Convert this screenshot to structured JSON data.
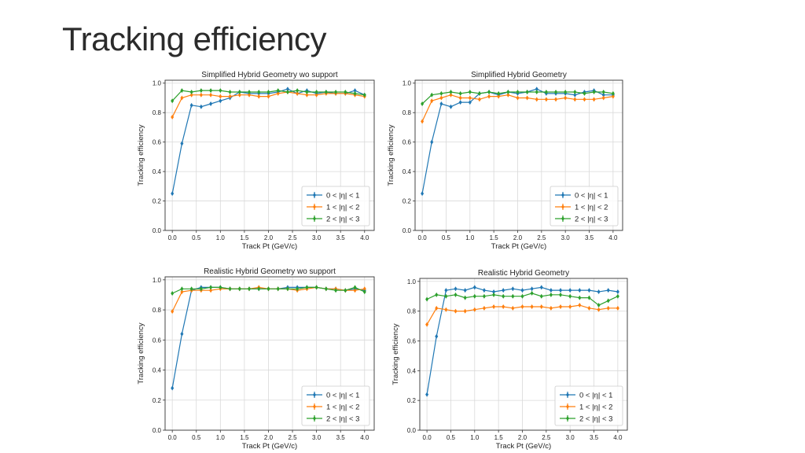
{
  "slide": {
    "title": "Tracking efficiency"
  },
  "chart_data": [
    {
      "type": "line",
      "title": "Simplified Hybrid Geometry wo support",
      "xlabel": "Track Pt (GeV/c)",
      "ylabel": "Tracking efficiency",
      "xlim": [
        -0.15,
        4.2
      ],
      "ylim": [
        0.0,
        1.02
      ],
      "xticks": [
        "0.0",
        "0.5",
        "1.0",
        "1.5",
        "2.0",
        "2.5",
        "3.0",
        "3.5",
        "4.0"
      ],
      "yticks": [
        "0.0",
        "0.2",
        "0.4",
        "0.6",
        "0.8",
        "1.0"
      ],
      "grid": true,
      "legend_position": "lower-right",
      "x": [
        0.0,
        0.2,
        0.4,
        0.6,
        0.8,
        1.0,
        1.2,
        1.4,
        1.6,
        1.8,
        2.0,
        2.2,
        2.4,
        2.6,
        2.8,
        3.0,
        3.2,
        3.4,
        3.6,
        3.8,
        4.0
      ],
      "series": [
        {
          "name": "0 < |η| < 1",
          "color": "#1f77b4",
          "values": [
            0.25,
            0.59,
            0.85,
            0.84,
            0.86,
            0.88,
            0.9,
            0.94,
            0.93,
            0.93,
            0.93,
            0.94,
            0.96,
            0.93,
            0.95,
            0.93,
            0.94,
            0.93,
            0.93,
            0.95,
            0.92
          ]
        },
        {
          "name": "1 < |η| < 2",
          "color": "#ff7f0e",
          "values": [
            0.77,
            0.9,
            0.92,
            0.92,
            0.92,
            0.91,
            0.91,
            0.92,
            0.92,
            0.91,
            0.91,
            0.93,
            0.94,
            0.93,
            0.92,
            0.92,
            0.93,
            0.93,
            0.93,
            0.92,
            0.91
          ]
        },
        {
          "name": "2 < |η| < 3",
          "color": "#2ca02c",
          "values": [
            0.88,
            0.95,
            0.94,
            0.95,
            0.95,
            0.95,
            0.94,
            0.94,
            0.94,
            0.94,
            0.94,
            0.95,
            0.94,
            0.95,
            0.94,
            0.94,
            0.94,
            0.94,
            0.94,
            0.93,
            0.92
          ]
        }
      ]
    },
    {
      "type": "line",
      "title": "Simplified Hybrid Geometry",
      "xlabel": "Track Pt (GeV/c)",
      "ylabel": "Tracking efficiency",
      "xlim": [
        -0.15,
        4.2
      ],
      "ylim": [
        0.0,
        1.02
      ],
      "xticks": [
        "0.0",
        "0.5",
        "1.0",
        "1.5",
        "2.0",
        "2.5",
        "3.0",
        "3.5",
        "4.0"
      ],
      "yticks": [
        "0.0",
        "0.2",
        "0.4",
        "0.6",
        "0.8",
        "1.0"
      ],
      "grid": true,
      "legend_position": "lower-right",
      "x": [
        0.0,
        0.2,
        0.4,
        0.6,
        0.8,
        1.0,
        1.2,
        1.4,
        1.6,
        1.8,
        2.0,
        2.2,
        2.4,
        2.6,
        2.8,
        3.0,
        3.2,
        3.4,
        3.6,
        3.8,
        4.0
      ],
      "series": [
        {
          "name": "0 < |η| < 1",
          "color": "#1f77b4",
          "values": [
            0.25,
            0.6,
            0.86,
            0.84,
            0.87,
            0.87,
            0.93,
            0.94,
            0.92,
            0.94,
            0.93,
            0.94,
            0.96,
            0.93,
            0.93,
            0.93,
            0.92,
            0.94,
            0.95,
            0.92,
            0.92
          ]
        },
        {
          "name": "1 < |η| < 2",
          "color": "#ff7f0e",
          "values": [
            0.74,
            0.88,
            0.9,
            0.92,
            0.9,
            0.9,
            0.89,
            0.91,
            0.91,
            0.92,
            0.9,
            0.9,
            0.89,
            0.89,
            0.89,
            0.9,
            0.89,
            0.89,
            0.89,
            0.9,
            0.91
          ]
        },
        {
          "name": "2 < |η| < 3",
          "color": "#2ca02c",
          "values": [
            0.86,
            0.92,
            0.93,
            0.94,
            0.93,
            0.94,
            0.93,
            0.94,
            0.93,
            0.94,
            0.94,
            0.94,
            0.94,
            0.94,
            0.94,
            0.94,
            0.94,
            0.93,
            0.94,
            0.94,
            0.93
          ]
        }
      ]
    },
    {
      "type": "line",
      "title": "Realistic Hybrid Geometry wo support",
      "xlabel": "Track Pt (GeV/c)",
      "ylabel": "Tracking efficiency",
      "xlim": [
        -0.15,
        4.2
      ],
      "ylim": [
        0.0,
        1.02
      ],
      "xticks": [
        "0.0",
        "0.5",
        "1.0",
        "1.5",
        "2.0",
        "2.5",
        "3.0",
        "3.5",
        "4.0"
      ],
      "yticks": [
        "0.0",
        "0.2",
        "0.4",
        "0.6",
        "0.8",
        "1.0"
      ],
      "grid": true,
      "legend_position": "lower-right",
      "x": [
        0.0,
        0.2,
        0.4,
        0.6,
        0.8,
        1.0,
        1.2,
        1.4,
        1.6,
        1.8,
        2.0,
        2.2,
        2.4,
        2.6,
        2.8,
        3.0,
        3.2,
        3.4,
        3.6,
        3.8,
        4.0
      ],
      "series": [
        {
          "name": "0 < |η| < 1",
          "color": "#1f77b4",
          "values": [
            0.28,
            0.64,
            0.93,
            0.95,
            0.95,
            0.95,
            0.94,
            0.94,
            0.94,
            0.94,
            0.94,
            0.94,
            0.95,
            0.95,
            0.95,
            0.95,
            0.94,
            0.94,
            0.93,
            0.94,
            0.93
          ]
        },
        {
          "name": "1 < |η| < 2",
          "color": "#ff7f0e",
          "values": [
            0.79,
            0.92,
            0.93,
            0.93,
            0.93,
            0.94,
            0.94,
            0.94,
            0.94,
            0.95,
            0.94,
            0.94,
            0.94,
            0.93,
            0.94,
            0.95,
            0.94,
            0.94,
            0.93,
            0.93,
            0.94
          ]
        },
        {
          "name": "2 < |η| < 3",
          "color": "#2ca02c",
          "values": [
            0.91,
            0.94,
            0.94,
            0.94,
            0.95,
            0.95,
            0.94,
            0.94,
            0.94,
            0.94,
            0.94,
            0.94,
            0.94,
            0.94,
            0.95,
            0.95,
            0.94,
            0.93,
            0.93,
            0.95,
            0.92
          ]
        }
      ]
    },
    {
      "type": "line",
      "title": "Realistic Hybrid Geometry",
      "xlabel": "Track Pt (GeV/c)",
      "ylabel": "Tracking efficiency",
      "xlim": [
        -0.15,
        4.2
      ],
      "ylim": [
        0.0,
        1.02
      ],
      "xticks": [
        "0.0",
        "0.5",
        "1.0",
        "1.5",
        "2.0",
        "2.5",
        "3.0",
        "3.5",
        "4.0"
      ],
      "yticks": [
        "0.0",
        "0.2",
        "0.4",
        "0.6",
        "0.8",
        "1.0"
      ],
      "grid": true,
      "legend_position": "lower-right",
      "x": [
        0.0,
        0.2,
        0.4,
        0.6,
        0.8,
        1.0,
        1.2,
        1.4,
        1.6,
        1.8,
        2.0,
        2.2,
        2.4,
        2.6,
        2.8,
        3.0,
        3.2,
        3.4,
        3.6,
        3.8,
        4.0
      ],
      "series": [
        {
          "name": "0 < |η| < 1",
          "color": "#1f77b4",
          "values": [
            0.24,
            0.63,
            0.94,
            0.95,
            0.94,
            0.96,
            0.94,
            0.93,
            0.94,
            0.95,
            0.94,
            0.95,
            0.96,
            0.94,
            0.94,
            0.94,
            0.94,
            0.94,
            0.93,
            0.94,
            0.93
          ]
        },
        {
          "name": "1 < |η| < 2",
          "color": "#ff7f0e",
          "values": [
            0.71,
            0.82,
            0.81,
            0.8,
            0.8,
            0.81,
            0.82,
            0.83,
            0.83,
            0.82,
            0.83,
            0.83,
            0.83,
            0.82,
            0.83,
            0.83,
            0.84,
            0.82,
            0.81,
            0.82,
            0.82
          ]
        },
        {
          "name": "2 < |η| < 3",
          "color": "#2ca02c",
          "values": [
            0.88,
            0.91,
            0.9,
            0.91,
            0.89,
            0.9,
            0.9,
            0.91,
            0.9,
            0.9,
            0.9,
            0.92,
            0.9,
            0.91,
            0.91,
            0.9,
            0.89,
            0.89,
            0.84,
            0.87,
            0.9
          ]
        }
      ]
    }
  ]
}
